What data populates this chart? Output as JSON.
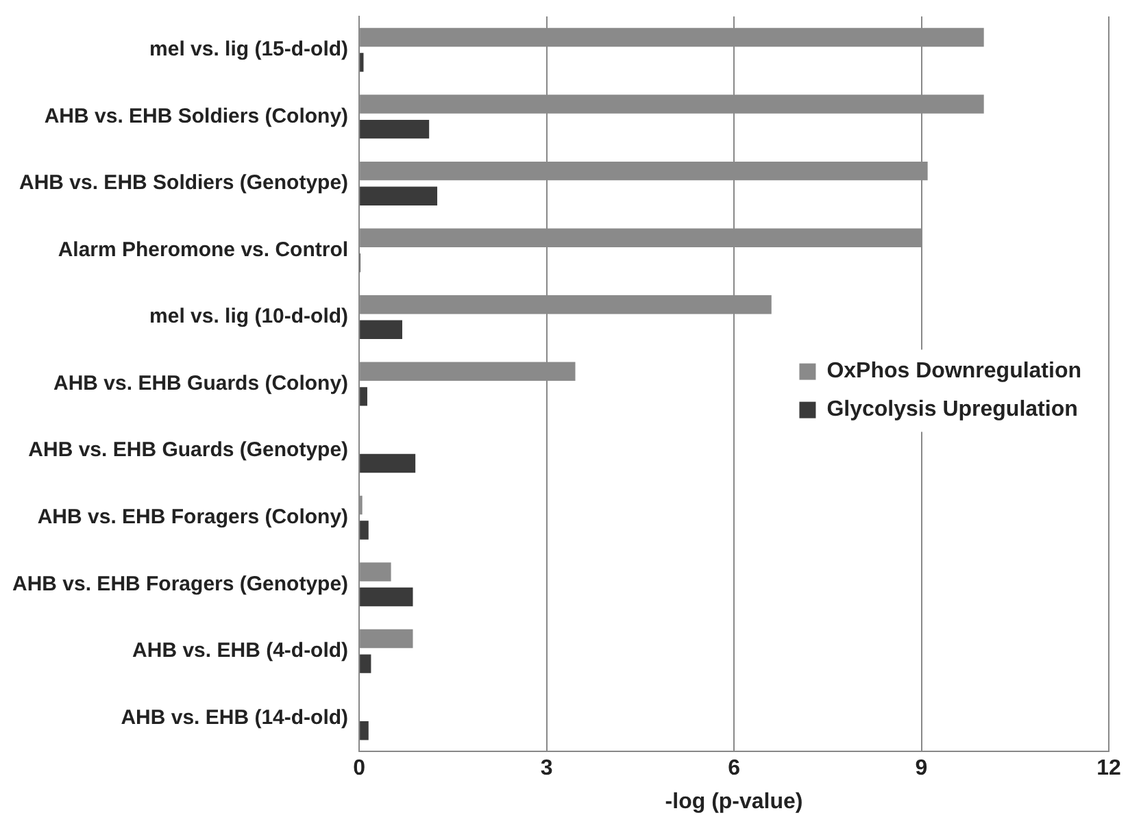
{
  "chart_data": {
    "type": "bar",
    "orientation": "horizontal",
    "xlabel": "-log (p-value)",
    "categories": [
      "mel vs. lig (15-d-old)",
      "AHB vs. EHB Soldiers (Colony)",
      "AHB vs. EHB Soldiers (Genotype)",
      "Alarm Pheromone vs. Control",
      "mel vs. lig (10-d-old)",
      "AHB vs. EHB Guards (Colony)",
      "AHB vs. EHB Guards (Genotype)",
      "AHB vs. EHB Foragers (Colony)",
      "AHB vs. EHB Foragers (Genotype)",
      "AHB vs. EHB (4-d-old)",
      "AHB vs. EHB (14-d-old)"
    ],
    "series": [
      {
        "name": "OxPhos Downregulation",
        "color": "#8a8a8a",
        "values": [
          10.0,
          10.0,
          9.1,
          9.0,
          6.6,
          3.46,
          null,
          0.05,
          0.51,
          0.86,
          null
        ]
      },
      {
        "name": "Glycolysis Upregulation",
        "color": "#3a3a3a",
        "values": [
          0.07,
          1.12,
          1.25,
          0.02,
          0.69,
          0.13,
          0.9,
          0.15,
          0.86,
          0.19,
          0.15
        ]
      }
    ],
    "xlim": [
      0,
      12
    ],
    "xticks": [
      0,
      3,
      6,
      9,
      12
    ],
    "grid": "x",
    "legend": "center right"
  }
}
